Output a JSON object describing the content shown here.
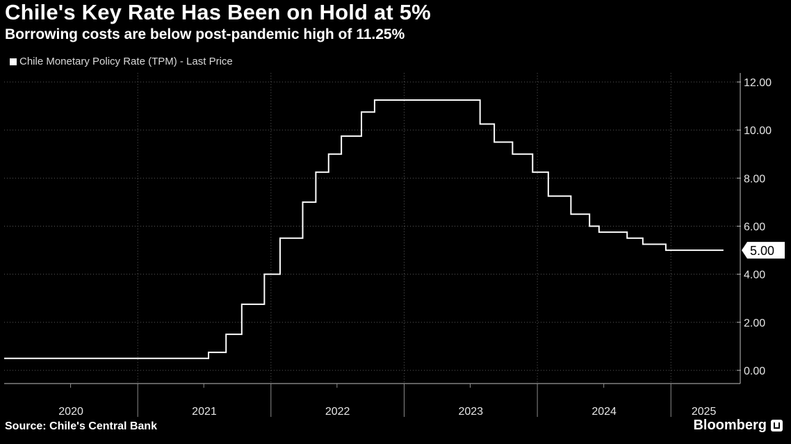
{
  "header": {
    "title": "Chile's Key Rate Has Been on Hold at 5%",
    "subtitle": "Borrowing costs are below post-pandemic high of 11.25%"
  },
  "legend": {
    "label": "Chile Monetary Policy Rate (TPM) - Last Price"
  },
  "footer": {
    "source": "Source: Chile's Central Bank",
    "brand": "Bloomberg"
  },
  "colors": {
    "background": "#000000",
    "line": "#ffffff",
    "grid": "#5a5a5a",
    "text": "#ffffff"
  },
  "chart_data": {
    "type": "line",
    "step": true,
    "title": "Chile's Key Rate Has Been on Hold at 5%",
    "subtitle": "Borrowing costs are below post-pandemic high of 11.25%",
    "xlabel": "",
    "ylabel": "",
    "x_range": [
      "2020-01-01",
      "2025-05-31"
    ],
    "ylim": [
      0,
      12
    ],
    "y_ticks": [
      "0.00",
      "2.00",
      "4.00",
      "6.00",
      "8.00",
      "10.00",
      "12.00"
    ],
    "x_tick_labels": [
      "2020",
      "2021",
      "2022",
      "2023",
      "2024",
      "2025"
    ],
    "y_axis_position": "right",
    "grid": true,
    "legend_position": "top-left",
    "last_value_label": "5.00",
    "series": [
      {
        "name": "Chile Monetary Policy Rate (TPM) - Last Price",
        "points": [
          [
            "2020-01-01",
            0.5
          ],
          [
            "2021-07-14",
            0.75
          ],
          [
            "2021-08-31",
            1.5
          ],
          [
            "2021-10-13",
            2.75
          ],
          [
            "2021-12-14",
            4.0
          ],
          [
            "2022-01-26",
            5.5
          ],
          [
            "2022-03-29",
            7.0
          ],
          [
            "2022-05-04",
            8.25
          ],
          [
            "2022-06-08",
            9.0
          ],
          [
            "2022-07-13",
            9.75
          ],
          [
            "2022-09-06",
            10.75
          ],
          [
            "2022-10-12",
            11.25
          ],
          [
            "2023-07-28",
            10.25
          ],
          [
            "2023-09-05",
            9.5
          ],
          [
            "2023-10-25",
            9.0
          ],
          [
            "2023-12-19",
            8.25
          ],
          [
            "2024-01-31",
            7.25
          ],
          [
            "2024-04-02",
            6.5
          ],
          [
            "2024-05-23",
            6.0
          ],
          [
            "2024-06-18",
            5.75
          ],
          [
            "2024-09-03",
            5.5
          ],
          [
            "2024-10-16",
            5.25
          ],
          [
            "2024-12-18",
            5.0
          ],
          [
            "2025-05-25",
            5.0
          ]
        ]
      }
    ]
  }
}
